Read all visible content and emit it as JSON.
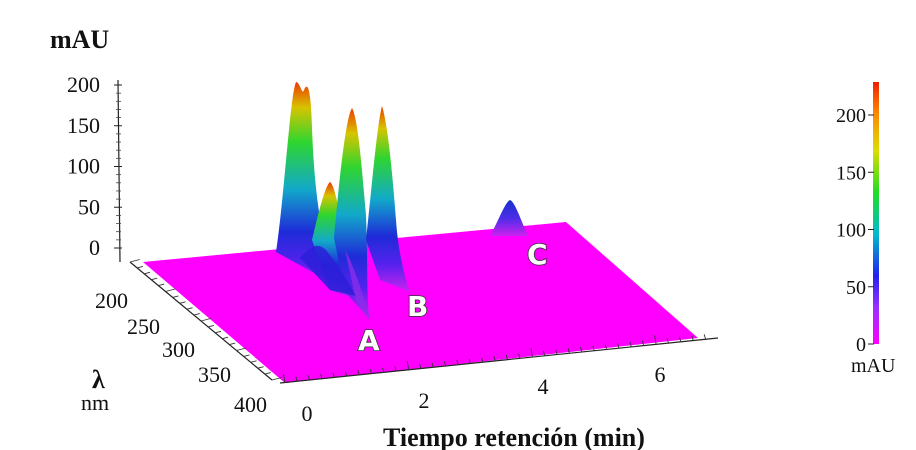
{
  "chart_data": {
    "type": "surface3d",
    "z_axis": {
      "label": "mAU",
      "ticks": [
        0,
        50,
        100,
        150,
        200
      ],
      "range": [
        0,
        220
      ]
    },
    "wavelength_axis": {
      "label": "λ",
      "unit": "nm",
      "ticks": [
        200,
        250,
        300,
        350,
        400
      ],
      "range": [
        200,
        400
      ]
    },
    "time_axis": {
      "label": "Tiempo retención (min)",
      "ticks": [
        0,
        2,
        4,
        6
      ],
      "range": [
        0,
        7
      ]
    },
    "colorbar": {
      "label": "mAU",
      "ticks": [
        0,
        50,
        100,
        150,
        200
      ],
      "range": [
        0,
        230
      ],
      "colors": [
        "#ff00ff",
        "#9b30ff",
        "#2222ee",
        "#00bbcc",
        "#22dd22",
        "#dddd00",
        "#ff8800",
        "#ee2200"
      ]
    },
    "peaks": [
      {
        "label": "",
        "time": 0.4,
        "max_mAU": 215
      },
      {
        "label": "",
        "time": 0.9,
        "max_mAU": 120
      },
      {
        "label": "A",
        "time": 1.3,
        "max_mAU": 175
      },
      {
        "label": "B",
        "time": 1.8,
        "max_mAU": 180
      },
      {
        "label": "C",
        "time": 4.1,
        "max_mAU": 40
      }
    ]
  }
}
